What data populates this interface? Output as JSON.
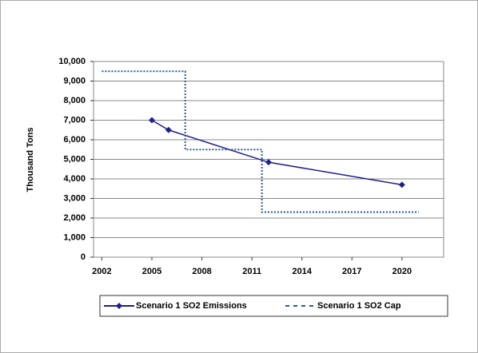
{
  "chart_data": {
    "type": "line",
    "y_label": "Thousand Tons",
    "xlim": [
      2001.5,
      2022.5
    ],
    "xticks": [
      2002,
      2005,
      2008,
      2011,
      2014,
      2017,
      2020
    ],
    "ylim": [
      0,
      10000
    ],
    "yticks": [
      0,
      {
        "value": 1000,
        "label": "1,000"
      },
      {
        "value": 2000,
        "label": "2,000"
      },
      {
        "value": 3000,
        "label": "3,000"
      },
      {
        "value": 4000,
        "label": "4,000"
      },
      {
        "value": 5000,
        "label": "5,000"
      },
      {
        "value": 6000,
        "label": "6,000"
      },
      {
        "value": 7000,
        "label": "7,000"
      },
      {
        "value": 8000,
        "label": "8,000"
      },
      {
        "value": 9000,
        "label": "9,000"
      },
      {
        "value": 10000,
        "label": "10,000"
      }
    ],
    "grid": true,
    "series": [
      {
        "name": "Scenario 1 SO2 Emissions",
        "color": "#1f1f8f",
        "style": "solid",
        "markers": true,
        "x": [
          2005,
          2006,
          2012,
          2020
        ],
        "values": [
          7000,
          6500,
          4850,
          3700
        ]
      },
      {
        "name": "Scenario 1 SO2 Cap",
        "color": "#2a5a9a",
        "style": "dotted",
        "markers": false,
        "x": [
          2002,
          2007,
          2007,
          2011.6,
          2011.6,
          2021
        ],
        "values": [
          9500,
          9500,
          5500,
          5500,
          2300,
          2300
        ]
      }
    ]
  }
}
